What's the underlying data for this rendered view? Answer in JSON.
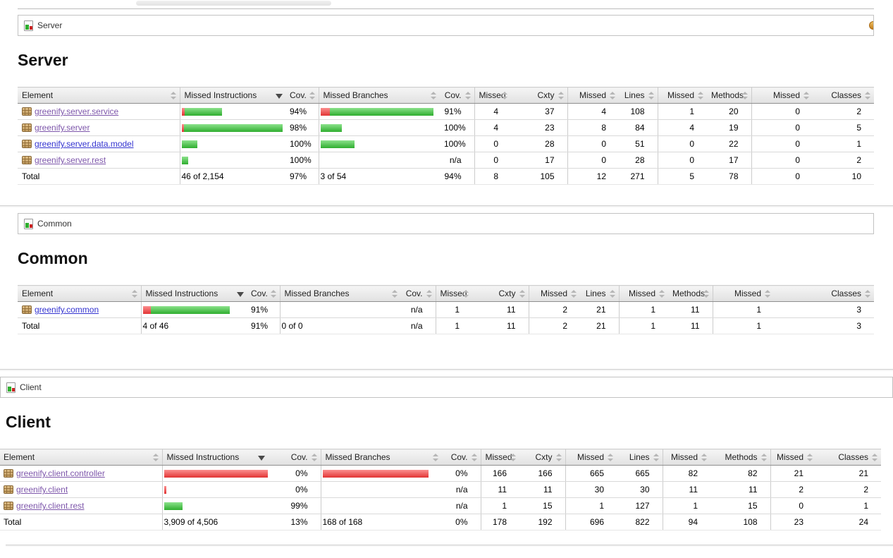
{
  "sort": {
    "column": "Missed Instructions",
    "direction": "desc"
  },
  "colors": {
    "bar_green": "#2fae2f",
    "bar_red": "#e23434",
    "link": "#3434d0",
    "link_visited": "#7e57ab",
    "header_bg": "#e1e1e1",
    "session_icon_orange": "#c47d1c"
  },
  "icons": {
    "breadcrumb": "report-icon",
    "package": "package-icon",
    "sort_inactive": "sort-both-icon",
    "sort_active": "sort-desc-icon",
    "breadcrumb_right_partial": "session-icon-partial"
  },
  "table_columns": [
    {
      "label": "Element"
    },
    {
      "label": "Missed Instructions"
    },
    {
      "label": "Cov."
    },
    {
      "label": "Missed Branches"
    },
    {
      "label": "Cov."
    },
    {
      "label": "Missed"
    },
    {
      "label": "Cxty"
    },
    {
      "label": "Missed"
    },
    {
      "label": "Lines"
    },
    {
      "label": "Missed"
    },
    {
      "label": "Methods"
    },
    {
      "label": "Missed"
    },
    {
      "label": "Classes"
    }
  ],
  "sections": [
    {
      "breadcrumb": "Server",
      "title": "Server",
      "rows": [
        {
          "element": "greenify.server.service",
          "visited": true,
          "ins_bar": {
            "red": 4,
            "green": 53
          },
          "ins_cov": "94%",
          "br_bar": {
            "red": 13,
            "green": 147
          },
          "br_cov": "91%",
          "nums": [
            "4",
            "37",
            "4",
            "108",
            "1",
            "20",
            "0",
            "2"
          ]
        },
        {
          "element": "greenify.server",
          "visited": true,
          "ins_bar": {
            "red": 3,
            "green": 140
          },
          "ins_cov": "98%",
          "br_bar": {
            "red": 0,
            "green": 30
          },
          "br_cov": "100%",
          "nums": [
            "4",
            "23",
            "8",
            "84",
            "4",
            "19",
            "0",
            "5"
          ]
        },
        {
          "element": "greenify.server.data.model",
          "visited": false,
          "ins_bar": {
            "red": 0,
            "green": 22
          },
          "ins_cov": "100%",
          "br_bar": {
            "red": 0,
            "green": 48
          },
          "br_cov": "100%",
          "nums": [
            "0",
            "28",
            "0",
            "51",
            "0",
            "22",
            "0",
            "1"
          ]
        },
        {
          "element": "greenify.server.rest",
          "visited": true,
          "ins_bar": {
            "red": 0,
            "green": 9
          },
          "ins_cov": "100%",
          "br_bar": {
            "red": 0,
            "green": 0
          },
          "br_cov": "n/a",
          "nums": [
            "0",
            "17",
            "0",
            "28",
            "0",
            "17",
            "0",
            "2"
          ]
        }
      ],
      "total": {
        "label": "Total",
        "ins": "46 of 2,154",
        "ins_cov": "97%",
        "br": "3 of 54",
        "br_cov": "94%",
        "nums": [
          "8",
          "105",
          "12",
          "271",
          "5",
          "78",
          "0",
          "10"
        ]
      }
    },
    {
      "breadcrumb": "Common",
      "title": "Common",
      "rows": [
        {
          "element": "greenify.common",
          "visited": false,
          "ins_bar": {
            "red": 11,
            "green": 112
          },
          "ins_cov": "91%",
          "br_bar": {
            "red": 0,
            "green": 0
          },
          "br_cov": "n/a",
          "nums": [
            "1",
            "11",
            "2",
            "21",
            "1",
            "11",
            "1",
            "3"
          ]
        }
      ],
      "total": {
        "label": "Total",
        "ins": "4 of 46",
        "ins_cov": "91%",
        "br": "0 of 0",
        "br_cov": "n/a",
        "nums": [
          "1",
          "11",
          "2",
          "21",
          "1",
          "11",
          "1",
          "3"
        ]
      }
    },
    {
      "breadcrumb": "Client",
      "title": "Client",
      "rows": [
        {
          "element": "greenify.client.controller",
          "visited": true,
          "ins_bar": {
            "red": 155,
            "green": 0
          },
          "ins_cov": "0%",
          "br_bar": {
            "red": 150,
            "green": 0
          },
          "br_cov": "0%",
          "nums": [
            "166",
            "166",
            "665",
            "665",
            "82",
            "82",
            "21",
            "21"
          ]
        },
        {
          "element": "greenify.client",
          "visited": true,
          "ins_bar": {
            "red": 3,
            "green": 0
          },
          "ins_cov": "0%",
          "br_bar": {
            "red": 0,
            "green": 0
          },
          "br_cov": "n/a",
          "nums": [
            "11",
            "11",
            "30",
            "30",
            "11",
            "11",
            "2",
            "2"
          ]
        },
        {
          "element": "greenify.client.rest",
          "visited": true,
          "ins_bar": {
            "red": 0,
            "green": 26
          },
          "ins_cov": "99%",
          "br_bar": {
            "red": 0,
            "green": 0
          },
          "br_cov": "n/a",
          "nums": [
            "1",
            "15",
            "1",
            "127",
            "1",
            "15",
            "0",
            "1"
          ]
        }
      ],
      "total": {
        "label": "Total",
        "ins": "3,909 of 4,506",
        "ins_cov": "13%",
        "br": "168 of 168",
        "br_cov": "0%",
        "nums": [
          "178",
          "192",
          "696",
          "822",
          "94",
          "108",
          "23",
          "24"
        ]
      }
    }
  ]
}
